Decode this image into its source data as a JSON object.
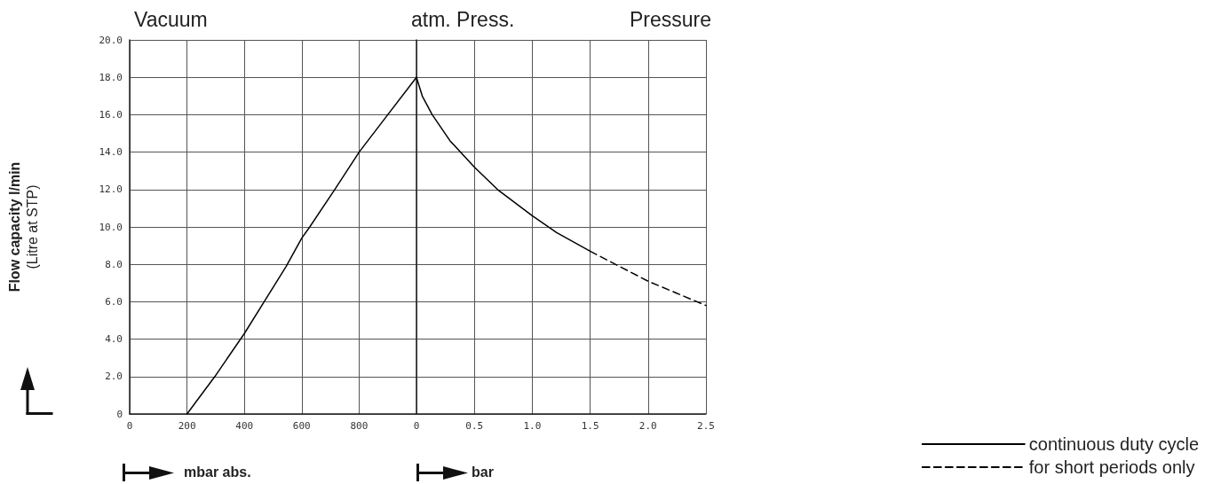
{
  "chart_data": [
    {
      "type": "line",
      "ylabel": "Flow capacity l/min\n(Litre at STP)",
      "annotations": [
        "Vacuum",
        "mbar abs."
      ],
      "xlim": [
        0,
        1000
      ],
      "xticks": [
        0,
        200,
        400,
        600,
        800
      ],
      "ylim": [
        0,
        20
      ],
      "yticks": [
        0,
        {
          "value": 2,
          "label": "2.0"
        },
        {
          "value": 4,
          "label": "4.0"
        },
        {
          "value": 6,
          "label": "6.0"
        },
        {
          "value": 8,
          "label": "8.0"
        },
        {
          "value": 10,
          "label": "10.0"
        },
        {
          "value": 12,
          "label": "12.0"
        },
        {
          "value": 14,
          "label": "14.0"
        },
        {
          "value": 16,
          "label": "16.0"
        },
        {
          "value": 18,
          "label": "18.0"
        },
        {
          "value": 20,
          "label": "20.0"
        }
      ],
      "grid": true,
      "marker": "none",
      "series": [
        {
          "color": "#000000",
          "line_style": "solid",
          "x": [
            200,
            297,
            400,
            469,
            546,
            600,
            628,
            715,
            800,
            900,
            1000
          ],
          "values": [
            0,
            2.0,
            4.3,
            6.0,
            7.9,
            9.4,
            10.0,
            12.0,
            14.0,
            16.0,
            18.0
          ]
        }
      ]
    },
    {
      "type": "line",
      "annotations": [
        "atm. Press.",
        "Pressure",
        "bar"
      ],
      "xlim": [
        0,
        2.5
      ],
      "xticks": [
        0,
        0.5,
        {
          "value": 1,
          "label": "1.0"
        },
        1.5,
        {
          "value": 2,
          "label": "2.0"
        },
        2.5
      ],
      "ylim": [
        0,
        20
      ],
      "yticks": [
        0,
        2,
        4,
        6,
        8,
        10,
        12,
        14,
        16,
        18,
        20
      ],
      "tick_labels": "x",
      "grid": true,
      "legend": "bottom right",
      "marker": "none",
      "series": [
        {
          "name": "continuous duty cycle",
          "color": "#000000",
          "line_style": "solid",
          "x": [
            0,
            0.05,
            0.136,
            0.29,
            0.5,
            0.7,
            1.0,
            1.21,
            1.5
          ],
          "values": [
            18.0,
            17.0,
            16.0,
            14.6,
            13.2,
            12.0,
            10.6,
            9.7,
            8.7
          ]
        },
        {
          "name": "for short periods only",
          "color": "#000000",
          "line_style": "dashed",
          "x": [
            1.5,
            1.75,
            2.0,
            2.5
          ],
          "values": [
            8.7,
            7.9,
            7.1,
            5.8
          ]
        }
      ]
    }
  ]
}
